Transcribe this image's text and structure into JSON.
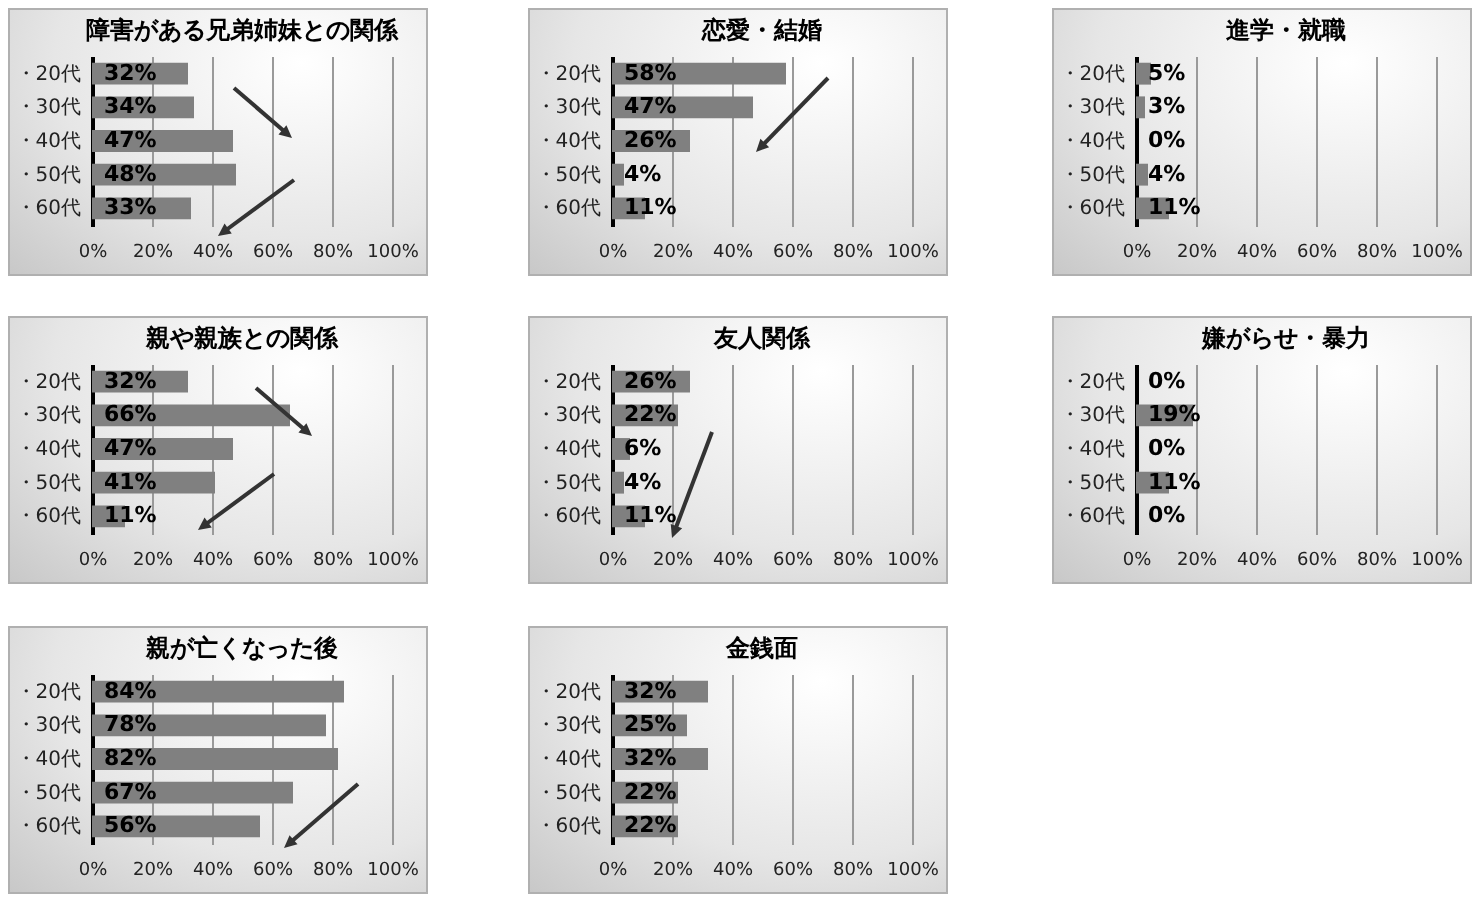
{
  "chart_data": [
    {
      "type": "bar",
      "orientation": "horizontal",
      "title": "障害がある兄弟姉妹との関係",
      "categories": [
        "・20代",
        "・30代",
        "・40代",
        "・50代",
        "・60代"
      ],
      "values": [
        32,
        34,
        47,
        48,
        33
      ],
      "value_labels": [
        "32%",
        "34%",
        "47%",
        "48%",
        "33%"
      ],
      "color": "#808080",
      "xlim": [
        0,
        100
      ],
      "xticks": [
        {
          "value": 0,
          "label": "0%"
        },
        {
          "value": 20,
          "label": "20%"
        },
        {
          "value": 40,
          "label": "40%"
        },
        {
          "value": 60,
          "label": "60%"
        },
        {
          "value": 80,
          "label": "80%"
        },
        {
          "value": 100,
          "label": "100%"
        }
      ],
      "grid": "x"
    },
    {
      "type": "bar",
      "orientation": "horizontal",
      "title": "恋愛・結婚",
      "categories": [
        "・20代",
        "・30代",
        "・40代",
        "・50代",
        "・60代"
      ],
      "values": [
        58,
        47,
        26,
        4,
        11
      ],
      "value_labels": [
        "58%",
        "47%",
        "26%",
        "4%",
        "11%"
      ],
      "color": "#808080",
      "xlim": [
        0,
        100
      ],
      "xticks": [
        {
          "value": 0,
          "label": "0%"
        },
        {
          "value": 20,
          "label": "20%"
        },
        {
          "value": 40,
          "label": "40%"
        },
        {
          "value": 60,
          "label": "60%"
        },
        {
          "value": 80,
          "label": "80%"
        },
        {
          "value": 100,
          "label": "100%"
        }
      ],
      "grid": "x"
    },
    {
      "type": "bar",
      "orientation": "horizontal",
      "title": "進学・就職",
      "categories": [
        "・20代",
        "・30代",
        "・40代",
        "・50代",
        "・60代"
      ],
      "values": [
        5,
        3,
        0,
        4,
        11
      ],
      "value_labels": [
        "5%",
        "3%",
        "0%",
        "4%",
        "11%"
      ],
      "color": "#808080",
      "xlim": [
        0,
        100
      ],
      "xticks": [
        {
          "value": 0,
          "label": "0%"
        },
        {
          "value": 20,
          "label": "20%"
        },
        {
          "value": 40,
          "label": "40%"
        },
        {
          "value": 60,
          "label": "60%"
        },
        {
          "value": 80,
          "label": "80%"
        },
        {
          "value": 100,
          "label": "100%"
        }
      ],
      "grid": "x"
    },
    {
      "type": "bar",
      "orientation": "horizontal",
      "title": "親や親族との関係",
      "categories": [
        "・20代",
        "・30代",
        "・40代",
        "・50代",
        "・60代"
      ],
      "values": [
        32,
        66,
        47,
        41,
        11
      ],
      "value_labels": [
        "32%",
        "66%",
        "47%",
        "41%",
        "11%"
      ],
      "color": "#808080",
      "xlim": [
        0,
        100
      ],
      "xticks": [
        {
          "value": 0,
          "label": "0%"
        },
        {
          "value": 20,
          "label": "20%"
        },
        {
          "value": 40,
          "label": "40%"
        },
        {
          "value": 60,
          "label": "60%"
        },
        {
          "value": 80,
          "label": "80%"
        },
        {
          "value": 100,
          "label": "100%"
        }
      ],
      "grid": "x"
    },
    {
      "type": "bar",
      "orientation": "horizontal",
      "title": "友人関係",
      "categories": [
        "・20代",
        "・30代",
        "・40代",
        "・50代",
        "・60代"
      ],
      "values": [
        26,
        22,
        6,
        4,
        11
      ],
      "value_labels": [
        "26%",
        "22%",
        "6%",
        "4%",
        "11%"
      ],
      "color": "#808080",
      "xlim": [
        0,
        100
      ],
      "xticks": [
        {
          "value": 0,
          "label": "0%"
        },
        {
          "value": 20,
          "label": "20%"
        },
        {
          "value": 40,
          "label": "40%"
        },
        {
          "value": 60,
          "label": "60%"
        },
        {
          "value": 80,
          "label": "80%"
        },
        {
          "value": 100,
          "label": "100%"
        }
      ],
      "grid": "x"
    },
    {
      "type": "bar",
      "orientation": "horizontal",
      "title": "嫌がらせ・暴力",
      "categories": [
        "・20代",
        "・30代",
        "・40代",
        "・50代",
        "・60代"
      ],
      "values": [
        0,
        19,
        0,
        11,
        0
      ],
      "value_labels": [
        "0%",
        "19%",
        "0%",
        "11%",
        "0%"
      ],
      "color": "#808080",
      "xlim": [
        0,
        100
      ],
      "xticks": [
        {
          "value": 0,
          "label": "0%"
        },
        {
          "value": 20,
          "label": "20%"
        },
        {
          "value": 40,
          "label": "40%"
        },
        {
          "value": 60,
          "label": "60%"
        },
        {
          "value": 80,
          "label": "80%"
        },
        {
          "value": 100,
          "label": "100%"
        }
      ],
      "grid": "x"
    },
    {
      "type": "bar",
      "orientation": "horizontal",
      "title": "親が亡くなった後",
      "categories": [
        "・20代",
        "・30代",
        "・40代",
        "・50代",
        "・60代"
      ],
      "values": [
        84,
        78,
        82,
        67,
        56
      ],
      "value_labels": [
        "84%",
        "78%",
        "82%",
        "67%",
        "56%"
      ],
      "color": "#808080",
      "xlim": [
        0,
        100
      ],
      "xticks": [
        {
          "value": 0,
          "label": "0%"
        },
        {
          "value": 20,
          "label": "20%"
        },
        {
          "value": 40,
          "label": "40%"
        },
        {
          "value": 60,
          "label": "60%"
        },
        {
          "value": 80,
          "label": "80%"
        },
        {
          "value": 100,
          "label": "100%"
        }
      ],
      "grid": "x"
    },
    {
      "type": "bar",
      "orientation": "horizontal",
      "title": "金銭面",
      "categories": [
        "・20代",
        "・30代",
        "・40代",
        "・50代",
        "・60代"
      ],
      "values": [
        32,
        25,
        32,
        22,
        22
      ],
      "value_labels": [
        "32%",
        "25%",
        "32%",
        "22%",
        "22%"
      ],
      "color": "#808080",
      "xlim": [
        0,
        100
      ],
      "xticks": [
        {
          "value": 0,
          "label": "0%"
        },
        {
          "value": 20,
          "label": "20%"
        },
        {
          "value": 40,
          "label": "40%"
        },
        {
          "value": 60,
          "label": "60%"
        },
        {
          "value": 80,
          "label": "80%"
        },
        {
          "value": 100,
          "label": "100%"
        }
      ],
      "grid": "x"
    }
  ]
}
